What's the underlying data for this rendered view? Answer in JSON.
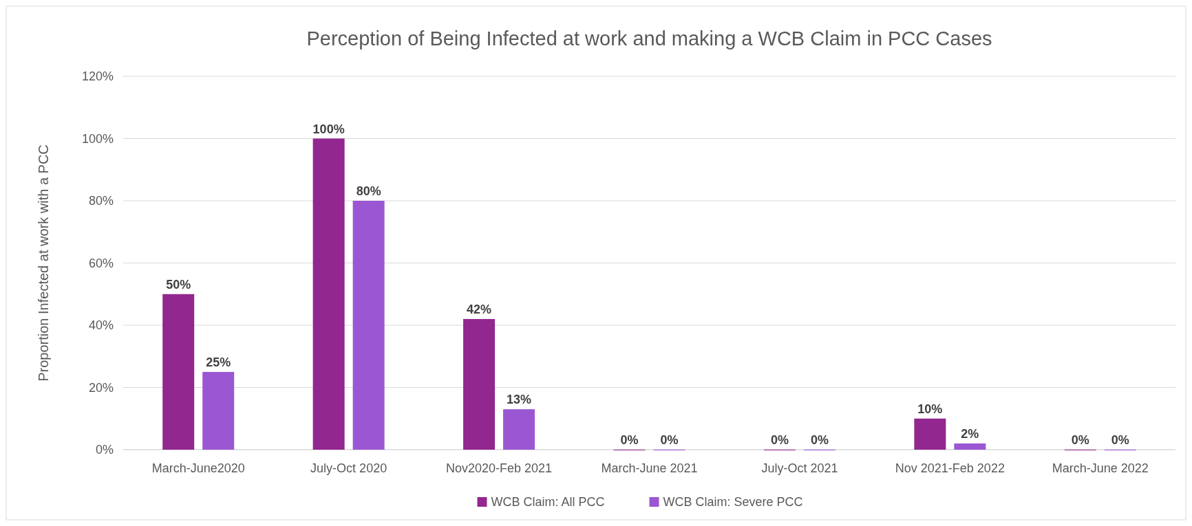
{
  "chart_data": {
    "type": "bar",
    "title": "Perception of Being Infected at work and making a WCB Claim in PCC Cases",
    "ylabel": "Proportion Infected at work with a PCC",
    "categories": [
      "March-June2020",
      "July-Oct 2020",
      "Nov2020-Feb 2021",
      "March-June 2021",
      "July-Oct 2021",
      "Nov 2021-Feb 2022",
      "March-June 2022"
    ],
    "series": [
      {
        "name": "WCB Claim: All PCC",
        "color": "#92278f",
        "values": [
          50,
          100,
          42,
          0,
          0,
          10,
          0
        ],
        "value_labels": [
          "50%",
          "100%",
          "42%",
          "0%",
          "0%",
          "10%",
          "0%"
        ]
      },
      {
        "name": "WCB Claim: Severe PCC",
        "color": "#9b57d3",
        "values": [
          25,
          80,
          13,
          0,
          0,
          2,
          0
        ],
        "value_labels": [
          "25%",
          "80%",
          "13%",
          "0%",
          "0%",
          "2%",
          "0%"
        ]
      }
    ],
    "ylim": [
      0,
      120
    ],
    "yticks": [
      {
        "value": 0,
        "label": "0%"
      },
      {
        "value": 20,
        "label": "20%"
      },
      {
        "value": 40,
        "label": "40%"
      },
      {
        "value": 60,
        "label": "60%"
      },
      {
        "value": 80,
        "label": "80%"
      },
      {
        "value": 100,
        "label": "100%"
      },
      {
        "value": 120,
        "label": "120%"
      }
    ],
    "grid": "y",
    "legend": "bottom"
  }
}
